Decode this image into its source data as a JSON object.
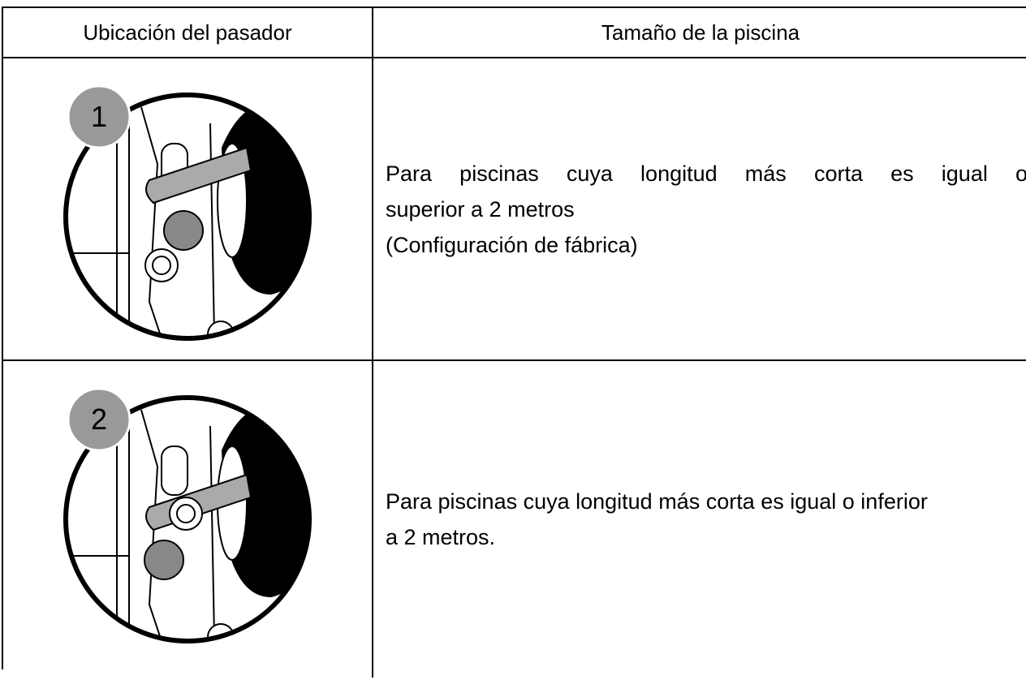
{
  "table": {
    "headers": [
      "Ubicación del pasador",
      "Tamaño de la piscina"
    ],
    "rows": [
      {
        "badge": "1",
        "lines": [
          "Para piscinas cuya longitud más corta es igual o",
          "superior a 2 metros",
          "(Configuración de fábrica)"
        ]
      },
      {
        "badge": "2",
        "lines": [
          "Para piscinas cuya longitud más corta es igual o inferior",
          "a 2 metros."
        ]
      }
    ]
  }
}
